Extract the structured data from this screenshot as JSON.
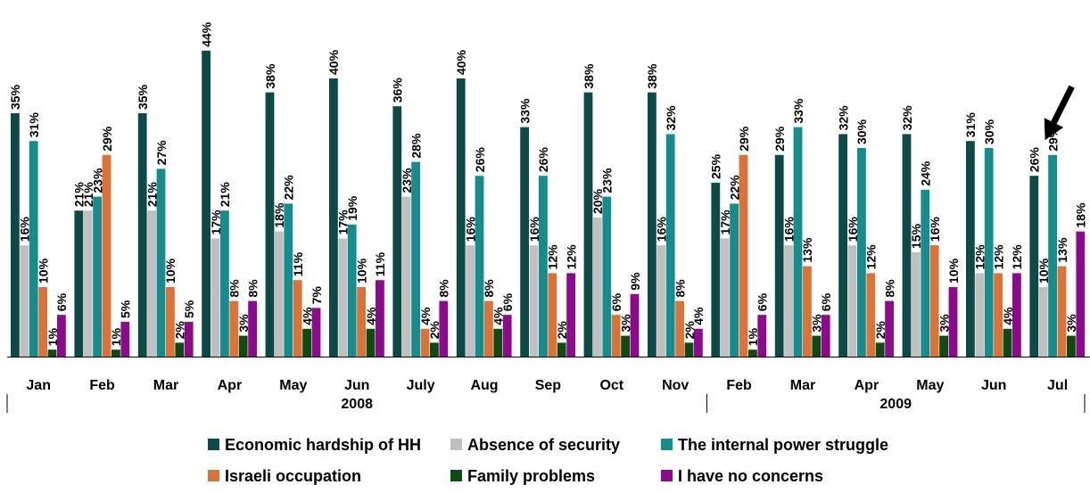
{
  "chart_data": {
    "type": "bar",
    "title": "",
    "xlabel": "",
    "ylabel": "",
    "ylim": [
      0,
      45
    ],
    "legend_position": "bottom",
    "categories": [
      "Jan",
      "Feb",
      "Mar",
      "Apr",
      "May",
      "Jun",
      "July",
      "Aug",
      "Sep",
      "Oct",
      "Nov",
      "Feb",
      "Mar",
      "Apr",
      "May",
      "Jun",
      "Jul"
    ],
    "year_groups": [
      {
        "label": "2008",
        "start": 0,
        "end": 10
      },
      {
        "label": "2009",
        "start": 11,
        "end": 16
      }
    ],
    "series": [
      {
        "name": "Economic hardship of HH",
        "color": "#0d4a47",
        "values": [
          35,
          21,
          35,
          44,
          38,
          40,
          36,
          40,
          33,
          38,
          38,
          25,
          29,
          32,
          32,
          31,
          26
        ]
      },
      {
        "name": "Absence of security",
        "color": "#c0c0c0",
        "values": [
          16,
          21,
          21,
          17,
          18,
          17,
          23,
          16,
          16,
          20,
          16,
          17,
          16,
          16,
          15,
          12,
          10
        ]
      },
      {
        "name": "The internal power struggle",
        "color": "#168c8c",
        "values": [
          31,
          23,
          27,
          21,
          22,
          19,
          28,
          26,
          26,
          23,
          32,
          22,
          33,
          30,
          24,
          30,
          29
        ]
      },
      {
        "name": "Israeli occupation",
        "color": "#d9733a",
        "values": [
          10,
          29,
          10,
          8,
          11,
          10,
          4,
          8,
          12,
          6,
          8,
          29,
          13,
          12,
          16,
          12,
          13
        ]
      },
      {
        "name": "Family problems",
        "color": "#0e4a12",
        "values": [
          1,
          1,
          2,
          3,
          4,
          4,
          2,
          4,
          2,
          3,
          2,
          1,
          3,
          2,
          3,
          4,
          3
        ]
      },
      {
        "name": "I have no concerns",
        "color": "#8c0a8c",
        "values": [
          6,
          5,
          5,
          8,
          7,
          11,
          8,
          6,
          12,
          9,
          4,
          6,
          6,
          8,
          10,
          12,
          18
        ]
      }
    ],
    "annotation": {
      "type": "arrow",
      "points_to_category_index": 16,
      "points_to_series_index": 0
    }
  }
}
